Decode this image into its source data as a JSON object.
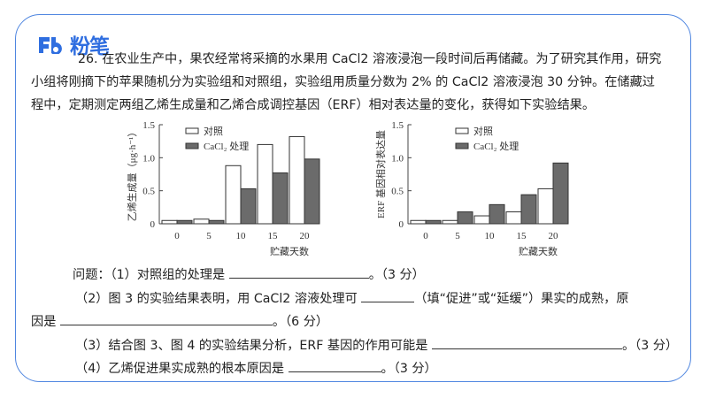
{
  "brand": {
    "name": "粉笔",
    "logo_icon": "fb-logo-icon",
    "color": "#2f6ee0"
  },
  "frame": {
    "border_color": "#4f86e0"
  },
  "question": {
    "intro_lines": [
      "26. 在农业生产中，果农经常将采摘的水果用 CaCl2 溶液浸泡一段时间后再储藏。为了研究其作用，研究",
      "小组将刚摘下的苹果随机分为实验组和对照组，实验组用质量分数为 2% 的 CaCl2 溶液浸泡 30 分钟。在储藏过",
      "程中，定期测定两组乙烯生成量和乙烯合成调控基因（ERF）相对表达量的变化，获得如下实验结果。"
    ],
    "sub_questions": [
      {
        "prefix": "问题：（1）对照组的处理是 ",
        "suffix": "。（3 分）"
      },
      {
        "prefix": "（2）图 3 的实验结果表明，用 CaCl2 溶液处理可 ",
        "suffix": "（填“促进”或“延缓”）果实的成熟，原"
      },
      {
        "prefix": "因是 ",
        "suffix": "。（6 分）"
      },
      {
        "prefix": "（3）结合图 3、图 4 的实验结果分析，ERF 基因的作用可能是 ",
        "suffix": "。（3 分）"
      },
      {
        "prefix": "（4）乙烯促进果实成熟的根本原因是 ",
        "suffix": "。（3 分）"
      }
    ]
  },
  "chart_data": [
    {
      "type": "bar",
      "title": "",
      "xlabel": "贮藏天数",
      "ylabel": "乙烯生成量（μg·h⁻¹）",
      "ylim": [
        0,
        1.5
      ],
      "yticks": [
        "0",
        "0.5",
        "1.0",
        "1.5"
      ],
      "categories": [
        "0",
        "5",
        "10",
        "15",
        "20"
      ],
      "legend_position": "top-left inside",
      "grid": false,
      "series": [
        {
          "name": "对照",
          "color": "#ffffff",
          "values": [
            0.05,
            0.07,
            0.88,
            1.2,
            1.32
          ]
        },
        {
          "name": "CaCl₂ 处理",
          "color": "#6b6b6b",
          "values": [
            0.05,
            0.05,
            0.53,
            0.77,
            0.98
          ]
        }
      ]
    },
    {
      "type": "bar",
      "title": "",
      "xlabel": "贮藏天数",
      "ylabel": "ERF 基因相对表达量",
      "ylim": [
        0,
        1.5
      ],
      "yticks": [
        "0",
        "0.5",
        "1.0",
        "1.5"
      ],
      "categories": [
        "0",
        "5",
        "10",
        "15",
        "20"
      ],
      "legend_position": "top-center inside",
      "grid": false,
      "series": [
        {
          "name": "对照",
          "color": "#ffffff",
          "values": [
            0.05,
            0.05,
            0.12,
            0.18,
            0.53
          ]
        },
        {
          "name": "CaCl₂ 处理",
          "color": "#6b6b6b",
          "values": [
            0.05,
            0.18,
            0.29,
            0.44,
            0.92
          ]
        }
      ]
    }
  ]
}
